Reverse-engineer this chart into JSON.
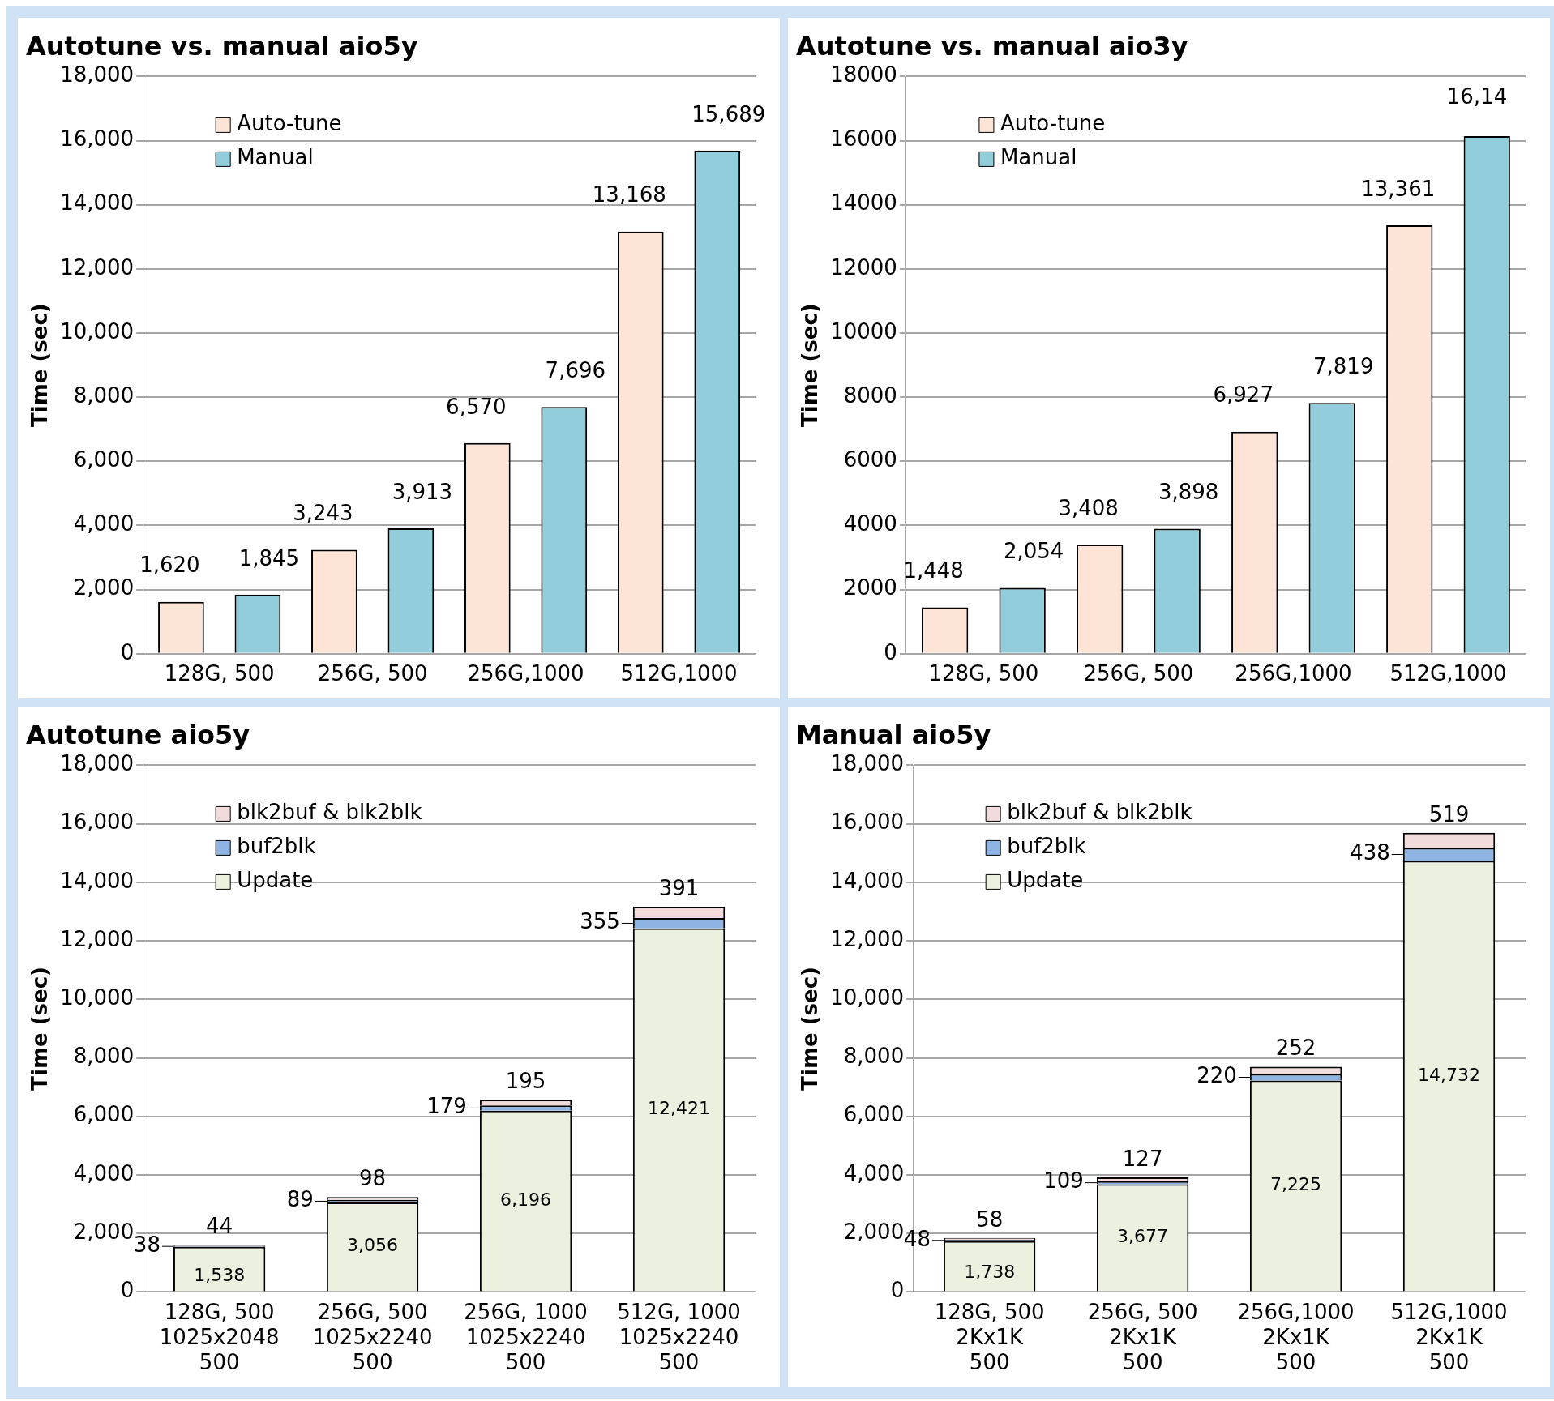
{
  "chart_data": [
    {
      "type": "bar",
      "title": "Autotune vs. manual aio5y",
      "ylabel": "Time (sec)",
      "categories": [
        "128G, 500",
        "256G, 500",
        "256G,1000",
        "512G,1000"
      ],
      "series": [
        {
          "name": "Auto-tune",
          "color": "#fce4d6",
          "values": [
            1620,
            3243,
            6570,
            13168
          ],
          "value_labels": [
            "1,620",
            "3,243",
            "6,570",
            "13,168"
          ]
        },
        {
          "name": "Manual",
          "color": "#92cddc",
          "values": [
            1845,
            3913,
            7696,
            15689
          ],
          "value_labels": [
            "1,845",
            "3,913",
            "7,696",
            "15,689"
          ]
        }
      ],
      "ylim": [
        0,
        18000
      ],
      "yticks": [
        0,
        {
          "value": 2000,
          "label": "2,000"
        },
        {
          "value": 4000,
          "label": "4,000"
        },
        {
          "value": 6000,
          "label": "6,000"
        },
        {
          "value": 8000,
          "label": "8,000"
        },
        {
          "value": 10000,
          "label": "10,000"
        },
        {
          "value": 12000,
          "label": "12,000"
        },
        {
          "value": 14000,
          "label": "14,000"
        },
        {
          "value": 16000,
          "label": "16,000"
        },
        {
          "value": 18000,
          "label": "18,000"
        }
      ],
      "grid": "y",
      "legend": "top left"
    },
    {
      "type": "bar",
      "title": "Autotune vs. manual aio3y",
      "ylabel": "Time (sec)",
      "categories": [
        "128G, 500",
        "256G, 500",
        "256G,1000",
        "512G,1000"
      ],
      "series": [
        {
          "name": "Auto-tune",
          "color": "#fce4d6",
          "values": [
            1448,
            3408,
            6927,
            13361
          ],
          "value_labels": [
            "1,448",
            "3,408",
            "6,927",
            "13,361"
          ]
        },
        {
          "name": "Manual",
          "color": "#92cddc",
          "values": [
            2054,
            3898,
            7819,
            16140
          ],
          "value_labels": [
            "2,054",
            "3,898",
            "7,819",
            null
          ]
        }
      ],
      "annotations": [
        "16,14"
      ],
      "ylim": [
        0,
        18000
      ],
      "yticks": [
        0,
        2000,
        4000,
        6000,
        8000,
        10000,
        12000,
        14000,
        16000,
        18000
      ],
      "grid": "y",
      "legend": "top left"
    },
    {
      "type": "bar",
      "stacked": true,
      "title": "Autotune aio5y",
      "ylabel": "Time (sec)",
      "categories": [
        "128G, 500\n1025x2048\n500",
        "256G, 500\n1025x2240\n500",
        "256G, 1000\n1025x2240\n500",
        "512G, 1000\n1025x2240\n500"
      ],
      "series": [
        {
          "name": "Update",
          "color": "#ebf1de",
          "values": [
            1538,
            3056,
            6196,
            12421
          ],
          "value_labels": [
            "1,538",
            "3,056",
            "6,196",
            "12,421"
          ]
        },
        {
          "name": "buf2blk",
          "color": "#8db4e2",
          "values": [
            38,
            89,
            179,
            355
          ],
          "value_labels": [
            "38",
            "89",
            "179",
            "355"
          ]
        },
        {
          "name": "blk2buf & blk2blk",
          "color": "#f2dcdb",
          "values": [
            44,
            98,
            195,
            391
          ],
          "value_labels": [
            "44",
            "98",
            "195",
            "391"
          ]
        }
      ],
      "ylim": [
        0,
        18000
      ],
      "yticks": [
        0,
        {
          "value": 2000,
          "label": "2,000"
        },
        {
          "value": 4000,
          "label": "4,000"
        },
        {
          "value": 6000,
          "label": "6,000"
        },
        {
          "value": 8000,
          "label": "8,000"
        },
        {
          "value": 10000,
          "label": "10,000"
        },
        {
          "value": 12000,
          "label": "12,000"
        },
        {
          "value": 14000,
          "label": "14,000"
        },
        {
          "value": 16000,
          "label": "16,000"
        },
        {
          "value": 18000,
          "label": "18,000"
        }
      ],
      "grid": "y",
      "legend": "top left"
    },
    {
      "type": "bar",
      "stacked": true,
      "title": "Manual aio5y",
      "ylabel": "Time (sec)",
      "categories": [
        "128G, 500\n2Kx1K\n500",
        "256G, 500\n2Kx1K\n500",
        "256G,1000\n2Kx1K\n500",
        "512G,1000\n2Kx1K\n500"
      ],
      "series": [
        {
          "name": "Update",
          "color": "#ebf1de",
          "values": [
            1738,
            3677,
            7225,
            14732
          ],
          "value_labels": [
            "1,738",
            "3,677",
            "7,225",
            "14,732"
          ]
        },
        {
          "name": "buf2blk",
          "color": "#8db4e2",
          "values": [
            48,
            109,
            220,
            438
          ],
          "value_labels": [
            "48",
            "109",
            "220",
            "438"
          ]
        },
        {
          "name": "blk2buf & blk2blk",
          "color": "#f2dcdb",
          "values": [
            58,
            127,
            252,
            519
          ],
          "value_labels": [
            "58",
            "127",
            "252",
            "519"
          ]
        }
      ],
      "ylim": [
        0,
        18000
      ],
      "yticks": [
        0,
        {
          "value": 2000,
          "label": "2,000"
        },
        {
          "value": 4000,
          "label": "4,000"
        },
        {
          "value": 6000,
          "label": "6,000"
        },
        {
          "value": 8000,
          "label": "8,000"
        },
        {
          "value": 10000,
          "label": "10,000"
        },
        {
          "value": 12000,
          "label": "12,000"
        },
        {
          "value": 14000,
          "label": "14,000"
        },
        {
          "value": 16000,
          "label": "16,000"
        },
        {
          "value": 18000,
          "label": "18,000"
        }
      ],
      "grid": "y",
      "legend": "top left"
    }
  ]
}
